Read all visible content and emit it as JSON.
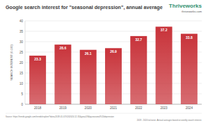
{
  "chart_data": {
    "type": "bar",
    "title": "Google search interest for \"seasonal depression\", annual average",
    "brand": "Thriveworks",
    "brand_url": "thriveworks.com",
    "y_label": "SEARCH INTEREST (0-100)",
    "categories": [
      "2018",
      "2019",
      "2020",
      "2021",
      "2022",
      "2023",
      "2024"
    ],
    "values": [
      23.3,
      28.6,
      26.1,
      26.9,
      32.7,
      37.2,
      33.8
    ],
    "color": "#c8333a",
    "ylim": [
      0,
      40
    ],
    "yticks": [
      0,
      5,
      10,
      15,
      20,
      25,
      30,
      35,
      40
    ],
    "grid": true,
    "data_labels": true,
    "source": "Source: https://trends.google.com/trends/explore?date=2018-01-01%202024-12-31&geo=US&q=seasonal%20depression",
    "note": "2018 - 2024 inclusive. Annual averages based on weekly search interest."
  }
}
